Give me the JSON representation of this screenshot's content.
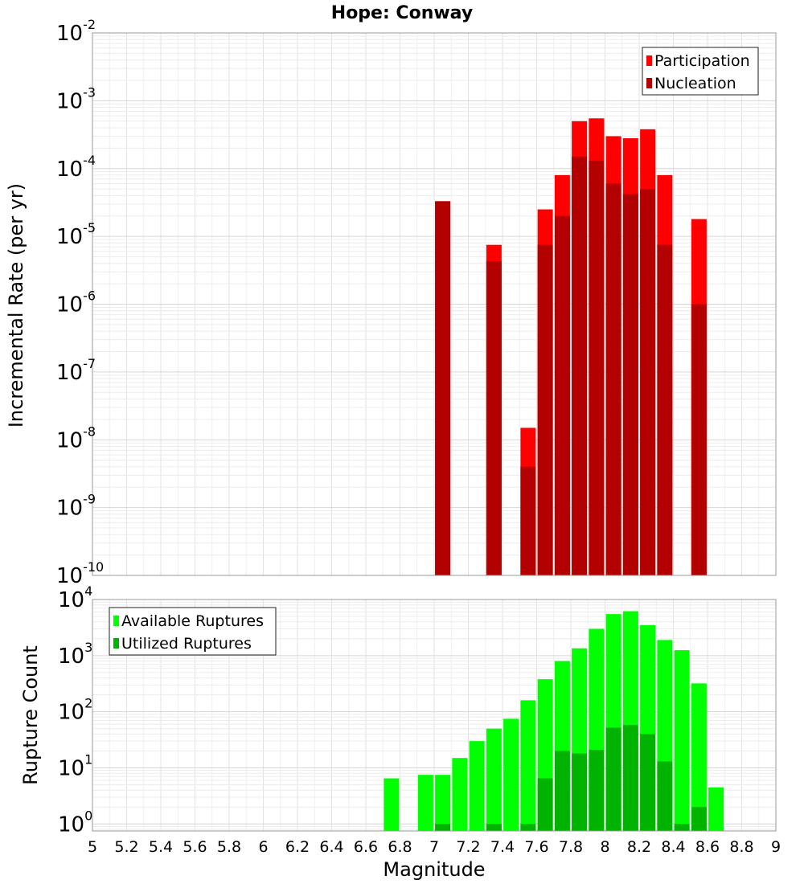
{
  "chart_data": [
    {
      "type": "bar",
      "id": "rate",
      "title": "Hope: Conway",
      "ylabel": "Incremental Rate (per yr)",
      "yscale": "log",
      "ylim": [
        1e-10,
        0.01
      ],
      "xlim": [
        5,
        9
      ],
      "ytick_exponents": [
        -10,
        -9,
        -8,
        -7,
        -6,
        -5,
        -4,
        -3,
        -2
      ],
      "grid": true,
      "legend_placement": "top-right",
      "series": [
        {
          "name": "Participation",
          "color": "#ff0000",
          "x": [
            7.05,
            7.35,
            7.55,
            7.65,
            7.75,
            7.85,
            7.95,
            8.05,
            8.15,
            8.25,
            8.35,
            8.55
          ],
          "values": [
            3.3e-05,
            7.5e-06,
            1.5e-08,
            2.5e-05,
            8e-05,
            0.0005,
            0.00055,
            0.0003,
            0.00028,
            0.00038,
            8e-05,
            1.8e-05
          ]
        },
        {
          "name": "Nucleation",
          "color": "#b30000",
          "x": [
            7.05,
            7.35,
            7.55,
            7.65,
            7.75,
            7.85,
            7.95,
            8.05,
            8.15,
            8.25,
            8.35,
            8.55
          ],
          "values": [
            3.3e-05,
            4.3e-06,
            4e-09,
            7.5e-06,
            2e-05,
            0.00015,
            0.00013,
            6e-05,
            4.2e-05,
            5e-05,
            7.5e-06,
            1e-06
          ]
        }
      ]
    },
    {
      "type": "bar",
      "id": "count",
      "ylabel": "Rupture Count",
      "xlabel": "Magnitude",
      "yscale": "log",
      "ylim": [
        0.75,
        10000
      ],
      "xlim": [
        5,
        9
      ],
      "ytick_exponents": [
        0,
        1,
        2,
        3,
        4
      ],
      "xticks": [
        "5",
        "5.2",
        "5.4",
        "5.6",
        "5.8",
        "6",
        "6.2",
        "6.4",
        "6.6",
        "6.8",
        "7",
        "7.2",
        "7.4",
        "7.6",
        "7.8",
        "8",
        "8.2",
        "8.4",
        "8.6",
        "8.8",
        "9"
      ],
      "grid": true,
      "legend_placement": "top-left",
      "series": [
        {
          "name": "Available Ruptures",
          "color": "#00ff00",
          "x": [
            6.75,
            6.95,
            7.05,
            7.15,
            7.25,
            7.35,
            7.45,
            7.55,
            7.65,
            7.75,
            7.85,
            7.95,
            8.05,
            8.15,
            8.25,
            8.35,
            8.45,
            8.55,
            8.65
          ],
          "values": [
            6.5,
            7.5,
            7.5,
            15,
            30,
            50,
            75,
            160,
            380,
            800,
            1350,
            3000,
            5500,
            6200,
            3500,
            1900,
            1250,
            320,
            4.5
          ]
        },
        {
          "name": "Utilized Ruptures",
          "color": "#00b300",
          "x": [
            7.05,
            7.35,
            7.55,
            7.65,
            7.75,
            7.85,
            7.95,
            8.05,
            8.15,
            8.25,
            8.35,
            8.45,
            8.55
          ],
          "values": [
            1,
            1,
            1,
            6.5,
            20,
            18,
            21,
            52,
            58,
            40,
            13,
            1,
            2
          ]
        }
      ]
    }
  ]
}
